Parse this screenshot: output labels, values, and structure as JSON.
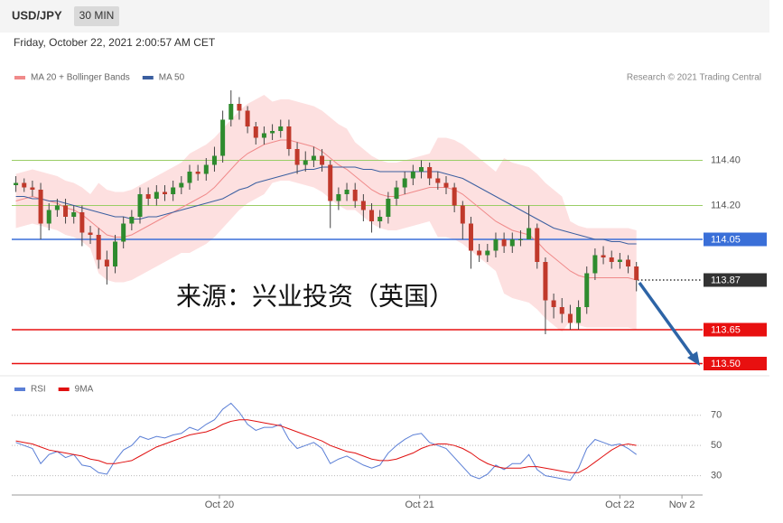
{
  "chart_data": [
    {
      "type": "candlestick",
      "title": "USD/JPY",
      "timeframe": "30 MIN",
      "subtitle": "Friday, October 22, 2021 2:00:57 AM CET",
      "source": "Research © 2021 Trading Central",
      "annotation": "来源：兴业投资（英国）",
      "x": [
        0,
        1,
        2,
        3,
        4,
        5,
        6,
        7,
        8,
        9,
        10,
        11,
        12,
        13,
        14,
        15,
        16,
        17,
        18,
        19,
        20,
        21,
        22,
        23,
        24,
        25,
        26,
        27,
        28,
        29,
        30,
        31,
        32,
        33,
        34,
        35,
        36,
        37,
        38,
        39,
        40,
        41,
        42,
        43,
        44,
        45,
        46,
        47,
        48,
        49,
        50,
        51,
        52,
        53,
        54,
        55,
        56,
        57,
        58,
        59,
        60,
        61,
        62,
        63,
        64,
        65,
        66,
        67,
        68,
        69,
        70,
        71,
        72,
        73,
        74,
        75
      ],
      "open": [
        114.29,
        114.3,
        114.28,
        114.27,
        114.12,
        114.18,
        114.2,
        114.15,
        114.17,
        114.08,
        114.07,
        113.96,
        113.93,
        114.04,
        114.12,
        114.15,
        114.25,
        114.23,
        114.26,
        114.25,
        114.28,
        114.3,
        114.35,
        114.34,
        114.38,
        114.42,
        114.58,
        114.65,
        114.62,
        114.55,
        114.5,
        114.52,
        114.53,
        114.55,
        114.45,
        114.38,
        114.4,
        114.42,
        114.38,
        114.22,
        114.25,
        114.27,
        114.22,
        114.18,
        114.13,
        114.15,
        114.23,
        114.28,
        114.32,
        114.35,
        114.37,
        114.32,
        114.3,
        114.28,
        114.2,
        114.12,
        114.0,
        113.98,
        114.0,
        114.05,
        114.02,
        114.05,
        114.05,
        114.1,
        113.95,
        113.78,
        113.75,
        113.72,
        113.68,
        113.75,
        113.9,
        113.98,
        113.97,
        113.95,
        113.96,
        113.93
      ],
      "high": [
        114.33,
        114.32,
        114.31,
        114.3,
        114.21,
        114.23,
        114.23,
        114.2,
        114.2,
        114.11,
        114.1,
        114.0,
        114.07,
        114.15,
        114.18,
        114.28,
        114.28,
        114.29,
        114.29,
        114.31,
        114.33,
        114.38,
        114.38,
        114.41,
        114.46,
        114.62,
        114.71,
        114.68,
        114.64,
        114.57,
        114.55,
        114.56,
        114.58,
        114.58,
        114.48,
        114.44,
        114.46,
        114.45,
        114.4,
        114.28,
        114.3,
        114.3,
        114.25,
        114.21,
        114.18,
        114.26,
        114.31,
        114.35,
        114.38,
        114.4,
        114.39,
        114.35,
        114.33,
        114.3,
        114.22,
        114.15,
        114.03,
        114.03,
        114.08,
        114.08,
        114.08,
        114.09,
        114.2,
        114.12,
        113.97,
        113.81,
        113.79,
        113.76,
        113.78,
        113.93,
        114.01,
        114.02,
        114.0,
        113.99,
        113.98,
        113.95
      ],
      "low": [
        114.26,
        114.26,
        114.24,
        114.05,
        114.09,
        114.15,
        114.12,
        114.12,
        114.02,
        114.03,
        113.92,
        113.85,
        113.9,
        114.01,
        114.09,
        114.12,
        114.2,
        114.2,
        114.22,
        114.22,
        114.25,
        114.27,
        114.31,
        114.31,
        114.35,
        114.39,
        114.55,
        114.58,
        114.52,
        114.47,
        114.47,
        114.49,
        114.5,
        114.42,
        114.34,
        114.35,
        114.37,
        114.35,
        114.1,
        114.18,
        114.22,
        114.19,
        114.13,
        114.08,
        114.1,
        114.12,
        114.2,
        114.25,
        114.29,
        114.32,
        114.29,
        114.27,
        114.25,
        114.17,
        114.05,
        113.92,
        113.95,
        113.95,
        113.97,
        113.99,
        113.99,
        114.02,
        114.06,
        113.92,
        113.63,
        113.7,
        113.68,
        113.65,
        113.65,
        113.72,
        113.87,
        113.94,
        113.92,
        113.92,
        113.9,
        113.82
      ],
      "close": [
        114.3,
        114.28,
        114.27,
        114.12,
        114.18,
        114.2,
        114.15,
        114.17,
        114.08,
        114.07,
        113.96,
        113.93,
        114.04,
        114.12,
        114.15,
        114.25,
        114.23,
        114.26,
        114.25,
        114.28,
        114.3,
        114.35,
        114.34,
        114.38,
        114.42,
        114.58,
        114.65,
        114.62,
        114.55,
        114.5,
        114.52,
        114.53,
        114.55,
        114.45,
        114.38,
        114.4,
        114.42,
        114.38,
        114.22,
        114.25,
        114.27,
        114.22,
        114.18,
        114.13,
        114.15,
        114.23,
        114.28,
        114.32,
        114.35,
        114.37,
        114.32,
        114.3,
        114.28,
        114.2,
        114.12,
        114.0,
        113.98,
        114.0,
        114.05,
        114.02,
        114.05,
        114.05,
        114.1,
        113.95,
        113.78,
        113.75,
        113.72,
        113.68,
        113.75,
        113.9,
        113.98,
        113.97,
        113.95,
        113.96,
        113.93,
        113.87
      ],
      "up_color": "#2e8b2e",
      "down_color": "#c0392b",
      "overlays": [
        {
          "name": "MA 20 + Bollinger Bands",
          "color": "#f08a8a",
          "band_color": "#fde0e0",
          "values": [
            114.22,
            114.23,
            114.24,
            114.23,
            114.22,
            114.21,
            114.19,
            114.18,
            114.16,
            114.13,
            114.1,
            114.07,
            114.06,
            114.06,
            114.07,
            114.09,
            114.11,
            114.13,
            114.15,
            114.17,
            114.19,
            114.21,
            114.23,
            114.25,
            114.28,
            114.32,
            114.36,
            114.4,
            114.43,
            114.45,
            114.47,
            114.48,
            114.49,
            114.49,
            114.48,
            114.47,
            114.46,
            114.44,
            114.41,
            114.38,
            114.36,
            114.33,
            114.3,
            114.27,
            114.25,
            114.24,
            114.24,
            114.25,
            114.26,
            114.27,
            114.28,
            114.28,
            114.28,
            114.27,
            114.25,
            114.22,
            114.19,
            114.16,
            114.13,
            114.11,
            114.09,
            114.08,
            114.07,
            114.04,
            114.0,
            113.97,
            113.94,
            113.91,
            113.89,
            113.88,
            113.88,
            113.88,
            113.88,
            113.88,
            113.88,
            113.87
          ],
          "upper": [
            114.34,
            114.35,
            114.36,
            114.35,
            114.34,
            114.33,
            114.31,
            114.3,
            114.28,
            114.25,
            114.3,
            114.27,
            114.26,
            114.26,
            114.27,
            114.29,
            114.31,
            114.33,
            114.35,
            114.37,
            114.39,
            114.43,
            114.45,
            114.47,
            114.5,
            114.54,
            114.58,
            114.62,
            114.65,
            114.67,
            114.69,
            114.66,
            114.67,
            114.67,
            114.66,
            114.65,
            114.64,
            114.62,
            114.59,
            114.56,
            114.54,
            114.48,
            114.45,
            114.42,
            114.4,
            114.39,
            114.39,
            114.4,
            114.41,
            114.42,
            114.43,
            114.5,
            114.5,
            114.49,
            114.47,
            114.44,
            114.41,
            114.38,
            114.35,
            114.41,
            114.39,
            114.38,
            114.37,
            114.34,
            114.3,
            114.27,
            114.24,
            114.13,
            114.11,
            114.1,
            114.1,
            114.1,
            114.1,
            114.1,
            114.1,
            114.09
          ],
          "lower": [
            114.1,
            114.11,
            114.12,
            114.11,
            114.1,
            114.09,
            114.07,
            114.06,
            114.04,
            114.01,
            113.9,
            113.87,
            113.86,
            113.86,
            113.87,
            113.89,
            113.91,
            113.93,
            113.95,
            113.97,
            113.99,
            113.99,
            114.01,
            114.03,
            114.06,
            114.1,
            114.14,
            114.18,
            114.21,
            114.23,
            114.25,
            114.3,
            114.31,
            114.31,
            114.3,
            114.29,
            114.28,
            114.26,
            114.23,
            114.2,
            114.18,
            114.18,
            114.15,
            114.12,
            114.1,
            114.09,
            114.09,
            114.1,
            114.11,
            114.12,
            114.13,
            114.06,
            114.06,
            114.05,
            114.03,
            114.0,
            113.97,
            113.94,
            113.91,
            113.81,
            113.79,
            113.78,
            113.77,
            113.74,
            113.7,
            113.67,
            113.64,
            113.69,
            113.67,
            113.66,
            113.66,
            113.66,
            113.66,
            113.66,
            113.66,
            113.65
          ]
        },
        {
          "name": "MA 50",
          "color": "#3b5fa0",
          "values": [
            114.24,
            114.24,
            114.23,
            114.23,
            114.22,
            114.22,
            114.21,
            114.2,
            114.19,
            114.18,
            114.17,
            114.16,
            114.15,
            114.15,
            114.14,
            114.14,
            114.15,
            114.15,
            114.16,
            114.17,
            114.18,
            114.19,
            114.2,
            114.21,
            114.22,
            114.23,
            114.25,
            114.27,
            114.28,
            114.3,
            114.31,
            114.32,
            114.33,
            114.34,
            114.35,
            114.36,
            114.36,
            114.37,
            114.37,
            114.37,
            114.37,
            114.37,
            114.36,
            114.36,
            114.35,
            114.35,
            114.35,
            114.35,
            114.35,
            114.35,
            114.35,
            114.35,
            114.34,
            114.33,
            114.32,
            114.3,
            114.28,
            114.26,
            114.24,
            114.22,
            114.2,
            114.18,
            114.16,
            114.14,
            114.12,
            114.1,
            114.09,
            114.08,
            114.07,
            114.06,
            114.05,
            114.05,
            114.04,
            114.04,
            114.03,
            114.03
          ]
        }
      ],
      "xlim": [
        -0.5,
        83
      ],
      "ylim": [
        113.45,
        114.95
      ],
      "yticks": [
        {
          "value": 114.4,
          "label": "114.40"
        },
        {
          "value": 114.2,
          "label": "114.20"
        },
        114.05,
        113.87,
        113.65,
        {
          "value": 113.5,
          "label": "113.50"
        }
      ],
      "ytick_colors": [
        "#9acd66",
        "#9acd66",
        "#3a6fd8",
        "#333333",
        "#e81010",
        "#e81010"
      ],
      "ytick_styles": [
        "line",
        "line",
        "line-box",
        "dotted-box",
        "line-box",
        "line-box"
      ]
    },
    {
      "type": "line",
      "x": [
        0,
        1,
        2,
        3,
        4,
        5,
        6,
        7,
        8,
        9,
        10,
        11,
        12,
        13,
        14,
        15,
        16,
        17,
        18,
        19,
        20,
        21,
        22,
        23,
        24,
        25,
        26,
        27,
        28,
        29,
        30,
        31,
        32,
        33,
        34,
        35,
        36,
        37,
        38,
        39,
        40,
        41,
        42,
        43,
        44,
        45,
        46,
        47,
        48,
        49,
        50,
        51,
        52,
        53,
        54,
        55,
        56,
        57,
        58,
        59,
        60,
        61,
        62,
        63,
        64,
        65,
        66,
        67,
        68,
        69,
        70,
        71,
        72,
        73,
        74,
        75
      ],
      "series": [
        {
          "name": "RSI",
          "color": "#5b7fd6",
          "values": [
            52,
            50,
            48,
            38,
            44,
            46,
            42,
            44,
            37,
            36,
            32,
            31,
            40,
            47,
            50,
            56,
            54,
            56,
            55,
            57,
            58,
            62,
            60,
            64,
            67,
            74,
            78,
            72,
            64,
            60,
            62,
            62,
            64,
            54,
            48,
            50,
            52,
            48,
            38,
            41,
            43,
            40,
            37,
            35,
            37,
            45,
            50,
            54,
            57,
            58,
            52,
            50,
            48,
            42,
            36,
            30,
            28,
            31,
            37,
            34,
            38,
            38,
            44,
            34,
            30,
            29,
            28,
            27,
            35,
            48,
            54,
            52,
            50,
            51,
            48,
            44
          ]
        },
        {
          "name": "9MA",
          "color": "#e01010",
          "values": [
            53,
            52,
            51,
            49,
            47,
            46,
            45,
            44,
            43,
            41,
            40,
            38,
            38,
            39,
            40,
            43,
            46,
            49,
            51,
            53,
            55,
            57,
            58,
            59,
            61,
            64,
            66,
            67,
            67,
            66,
            65,
            64,
            63,
            61,
            59,
            57,
            55,
            53,
            50,
            48,
            46,
            45,
            43,
            41,
            40,
            40,
            41,
            43,
            45,
            48,
            50,
            51,
            51,
            50,
            48,
            45,
            41,
            38,
            36,
            35,
            35,
            35,
            36,
            36,
            35,
            34,
            33,
            32,
            32,
            35,
            39,
            43,
            47,
            50,
            51,
            50
          ]
        }
      ],
      "xlim": [
        -0.5,
        83
      ],
      "ylim": [
        19,
        83
      ],
      "yticks": [
        30,
        50,
        70
      ],
      "xticks": [
        {
          "value": 24.6,
          "label": "Oct 20"
        },
        {
          "value": 48.8,
          "label": "Oct 21"
        },
        {
          "value": 73,
          "label": "Oct 22"
        },
        {
          "value": 80.5,
          "label": "Nov 2"
        }
      ]
    }
  ]
}
